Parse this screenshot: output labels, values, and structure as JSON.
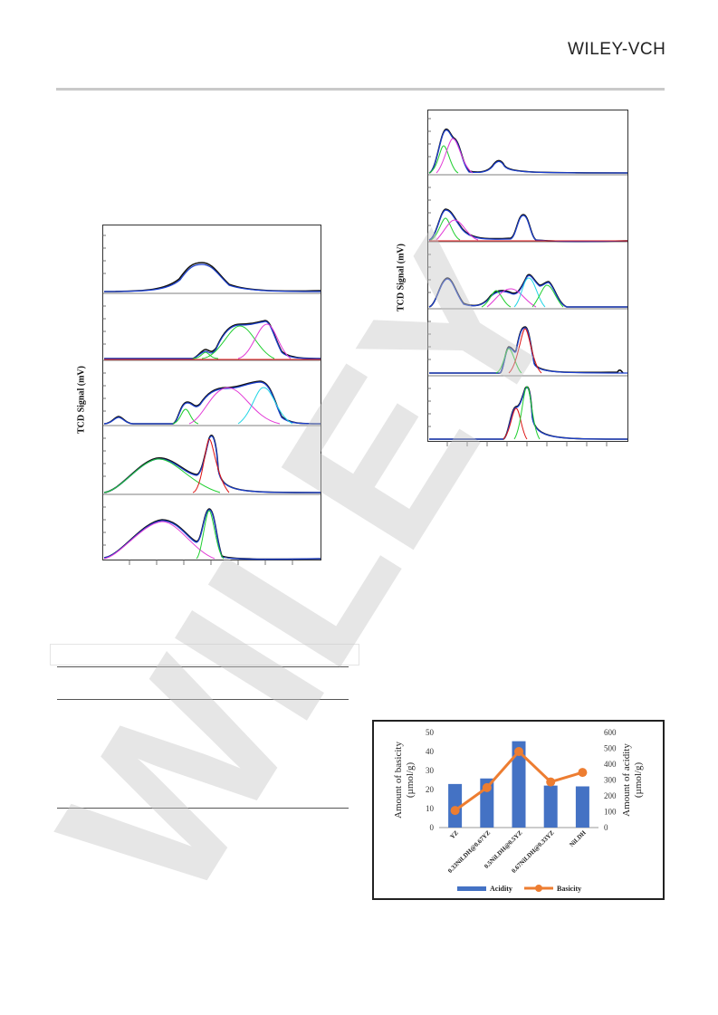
{
  "header": {
    "publisher": "WILEY-VCH"
  },
  "watermark": {
    "text": "WILEY"
  },
  "figure_left": {
    "ylabel": "TCD Signal (mV)",
    "panels": 5
  },
  "figure_right": {
    "ylabel": "TCD Signal (mV)",
    "panels": 5
  },
  "chart_data": {
    "type": "bar",
    "categories": [
      "YZ",
      "0.33NiLDH@0.67YZ",
      "0.5NiLDH@0.5YZ",
      "0.67NiLDH@0.33YZ",
      "NiLDH"
    ],
    "series": [
      {
        "name": "Acidity",
        "type": "bar",
        "axis": "right",
        "values": [
          275,
          310,
          545,
          265,
          260
        ],
        "color": "#4472c4"
      },
      {
        "name": "Basicity",
        "type": "line",
        "axis": "left",
        "values": [
          9,
          21,
          40,
          24,
          29
        ],
        "color": "#ed7d31"
      }
    ],
    "ylabel": "Amount of basicity (µmol/g)",
    "ylabel_right": "Amount of acidity (µmol/g)",
    "ylim": [
      0,
      50
    ],
    "ylim_right": [
      0,
      600
    ],
    "yticks": [
      "0",
      "10",
      "20",
      "30",
      "40",
      "50"
    ],
    "yticks_right": [
      "0",
      "100",
      "200",
      "300",
      "400",
      "500",
      "600"
    ],
    "legend": "bottom"
  }
}
